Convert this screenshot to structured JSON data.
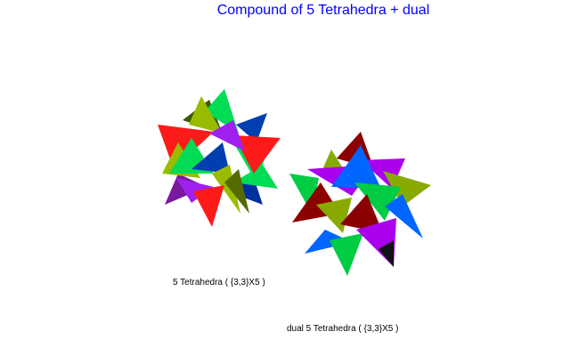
{
  "title": "Compound of 5 Tetrahedra + dual",
  "figures": [
    {
      "caption": "5 Tetrahedra ( {3,3}X5 )",
      "colors": [
        "#ff1a1a",
        "#00dd55",
        "#99bb00",
        "#a020f0",
        "#003fb0"
      ]
    },
    {
      "caption": "dual 5 Tetrahedra ( {3,3}X5 )",
      "colors": [
        "#8b0000",
        "#aa00ee",
        "#0066ff",
        "#00cc44",
        "#88aa00"
      ]
    }
  ]
}
